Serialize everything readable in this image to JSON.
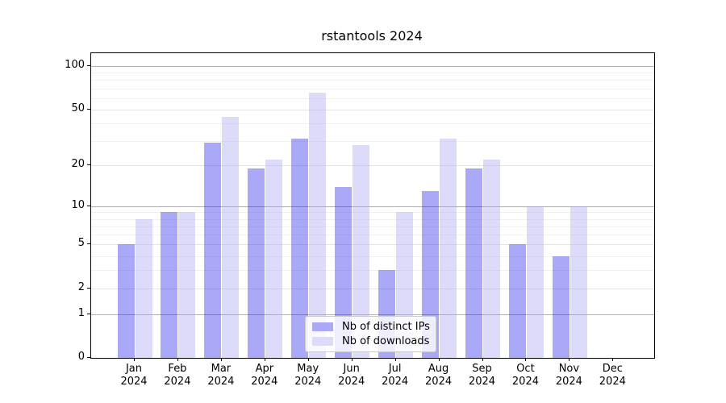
{
  "chart_data": {
    "type": "bar",
    "title": "rstantools 2024",
    "categories": [
      "Jan 2024",
      "Feb 2024",
      "Mar 2024",
      "Apr 2024",
      "May 2024",
      "Jun 2024",
      "Jul 2024",
      "Aug 2024",
      "Sep 2024",
      "Oct 2024",
      "Nov 2024",
      "Dec 2024"
    ],
    "series": [
      {
        "name": "Nb of distinct IPs",
        "color": "#a9a9f8",
        "fill_rgba": "rgba(40,40,238,0.4)",
        "values": [
          5,
          9,
          29,
          19,
          31,
          14,
          3,
          13,
          19,
          5,
          4,
          0
        ]
      },
      {
        "name": "Nb of downloads",
        "color": "#dcdcfa",
        "fill_rgba": "rgba(168,168,242,0.4)",
        "values": [
          8,
          9,
          44,
          22,
          65,
          28,
          9,
          31,
          22,
          10,
          10,
          0
        ]
      }
    ],
    "y_axis": {
      "scale": "log1p",
      "ticks": [
        100,
        50,
        20,
        10,
        5,
        2,
        1,
        0
      ],
      "decade_gridlines": [
        1,
        10,
        100
      ],
      "major_gridlines": [
        2,
        5,
        20,
        50
      ],
      "minor_gridlines": [
        3,
        4,
        6,
        7,
        8,
        9,
        30,
        40,
        60,
        70,
        80,
        90
      ],
      "ylim": [
        0,
        123
      ]
    },
    "legend": {
      "position": "lower-center",
      "items": [
        "Nb of distinct IPs",
        "Nb of downloads"
      ]
    },
    "colors": {
      "grid_decade": "#b0b0b0",
      "grid_major": "#e4e4e4",
      "grid_minor": "#f1f1f1",
      "axis": "#000000",
      "background": "#ffffff"
    }
  }
}
